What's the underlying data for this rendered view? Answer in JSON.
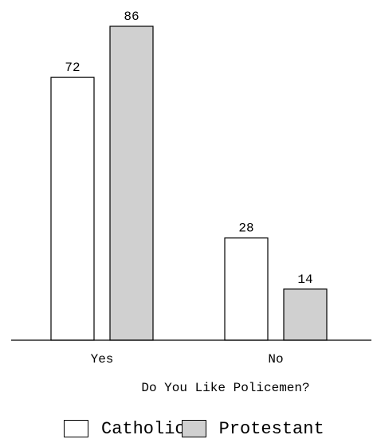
{
  "chart_data": {
    "type": "bar",
    "categories": [
      "Yes",
      "No"
    ],
    "series": [
      {
        "name": "Catholic",
        "values": [
          72,
          28
        ],
        "color": "#ffffff"
      },
      {
        "name": "Protestant",
        "values": [
          86,
          14
        ],
        "color": "#d0d0d0"
      }
    ],
    "xlabel": "Do You Like Policemen?",
    "ylabel": "",
    "ylim": [
      0,
      86
    ],
    "grid": false,
    "legend_position": "bottom"
  }
}
